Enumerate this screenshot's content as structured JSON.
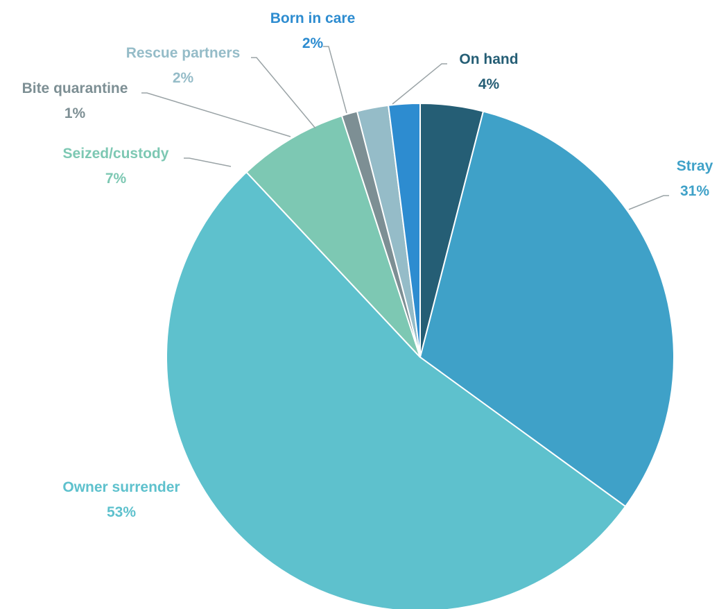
{
  "chart_data": {
    "type": "pie",
    "title": "",
    "slices": [
      {
        "name": "On hand",
        "value": 4,
        "pct_label": "4%",
        "color": "#255e75"
      },
      {
        "name": "Stray",
        "value": 31,
        "pct_label": "31%",
        "color": "#3fa1c8"
      },
      {
        "name": "Owner surrender",
        "value": 53,
        "pct_label": "53%",
        "color": "#5ec1cd"
      },
      {
        "name": "Seized/custody",
        "value": 7,
        "pct_label": "7%",
        "color": "#7dc8b3"
      },
      {
        "name": "Bite quarantine",
        "value": 1,
        "pct_label": "1%",
        "color": "#7d8f94"
      },
      {
        "name": "Rescue partners",
        "value": 2,
        "pct_label": "2%",
        "color": "#95bcc8"
      },
      {
        "name": "Born in care",
        "value": 2,
        "pct_label": "2%",
        "color": "#2d8cd0"
      }
    ],
    "start_angle": "top, clockwise from On hand"
  }
}
